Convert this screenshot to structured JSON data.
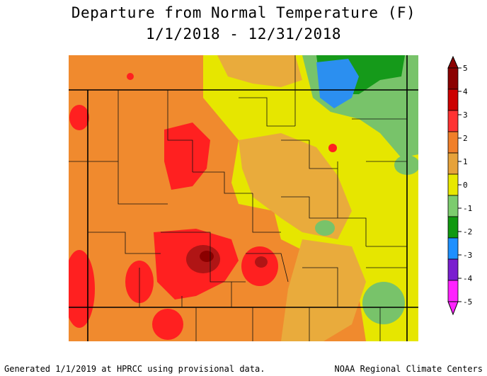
{
  "title": {
    "line1": "Departure from Normal Temperature (F)",
    "line2": "1/1/2018 - 12/31/2018"
  },
  "legend": {
    "labels": [
      "5",
      "4",
      "3",
      "2",
      "1",
      "0",
      "-1",
      "-2",
      "-3",
      "-4",
      "-5"
    ],
    "colors": [
      "#8b0000",
      "#cc0000",
      "#ff3333",
      "#f07f2a",
      "#e6a23a",
      "#e8e800",
      "#7ccc6e",
      "#109910",
      "#1e90ff",
      "#7a1fcf",
      "#ff22ff"
    ]
  },
  "map": {
    "colors": {
      "plus5": "#8b0000",
      "plus4": "#b01515",
      "plus3": "#ff2020",
      "plus2": "#f08a2e",
      "plus1": "#e9ab3c",
      "zero": "#e6e600",
      "minus1": "#78c36a",
      "minus2": "#159a1a",
      "minus3": "#2b8ff0"
    }
  },
  "footer": {
    "left": "Generated 1/1/2019 at HPRCC using provisional data.",
    "right": "NOAA Regional Climate Centers"
  }
}
